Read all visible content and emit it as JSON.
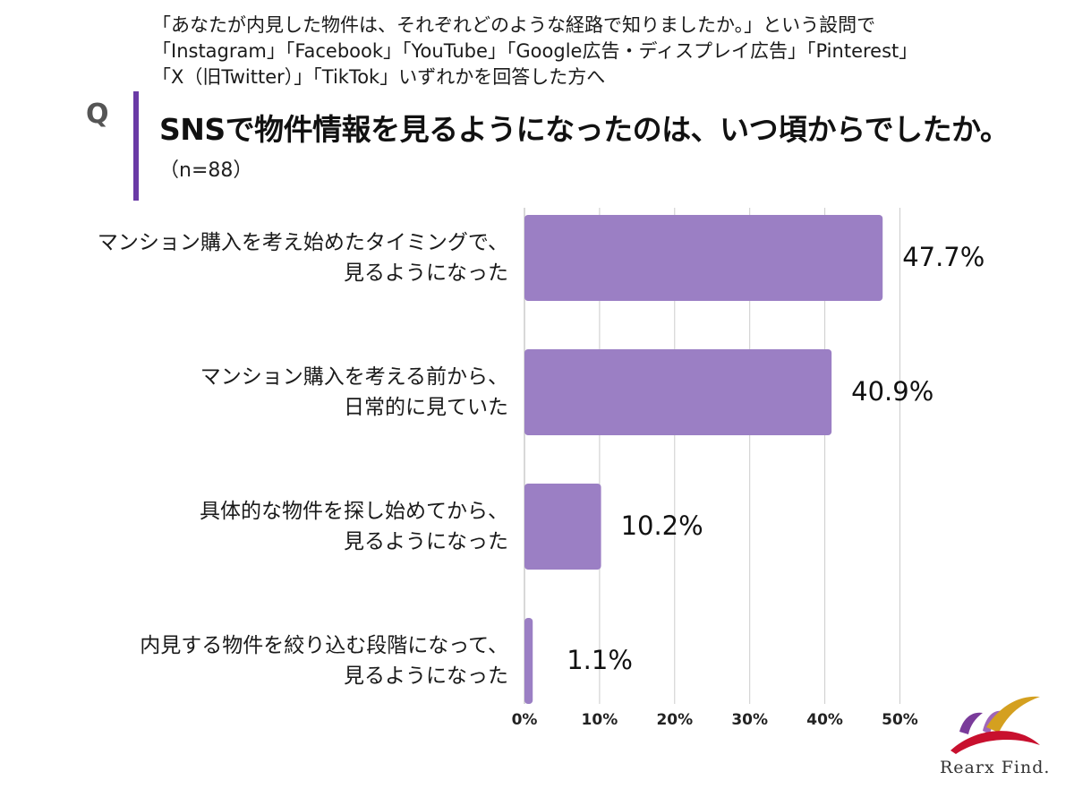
{
  "preface_lines": [
    "「あなたが内見した物件は、それぞれどのような経路で知りましたか。」という設問で",
    "「Instagram」「Facebook」「YouTube」「Google広告・ディスプレイ広告」「Pinterest」",
    "「X（旧Twitter）」「TikTok」いずれかを回答した方へ"
  ],
  "q_mark": "Q",
  "question": "SNSで物件情報を見るようになったのは、いつ頃からでしたか。",
  "sample_size": "（n=88）",
  "logo_text": "Rearx Find.",
  "colors": {
    "bar": "#9b7fc4",
    "accent_rule": "#6a3aa6",
    "grid": "#cccccc"
  },
  "chart_data": {
    "type": "bar",
    "orientation": "horizontal",
    "categories": [
      [
        "マンション購入を考え始めたタイミングで、",
        "見るようになった"
      ],
      [
        "マンション購入を考える前から、",
        "日常的に見ていた"
      ],
      [
        "具体的な物件を探し始めてから、",
        "見るようになった"
      ],
      [
        "内見する物件を絞り込む段階になって、",
        "見るようになった"
      ]
    ],
    "values": [
      47.7,
      40.9,
      10.2,
      1.1
    ],
    "value_labels": [
      "47.7%",
      "40.9%",
      "10.2%",
      "1.1%"
    ],
    "xlim": [
      0,
      50
    ],
    "ticks": [
      "0%",
      "10%",
      "20%",
      "30%",
      "40%",
      "50%"
    ],
    "grid": true
  }
}
